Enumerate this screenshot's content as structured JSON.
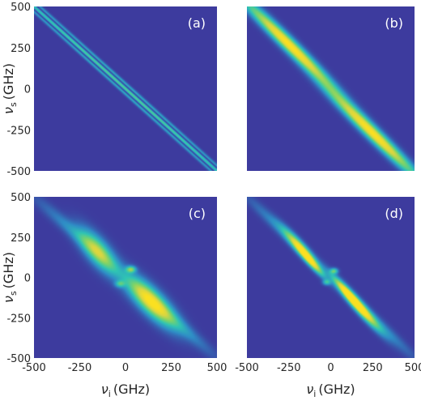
{
  "figure": {
    "x_axis": {
      "symbol": "ν",
      "sub": "i",
      "unit": "(GHz)"
    },
    "y_axis": {
      "symbol": "ν",
      "sub": "s",
      "unit": "(GHz)"
    }
  },
  "colors": {
    "background": "#3d3b9e",
    "colormap": [
      "#3d3b9e",
      "#2f8cc6",
      "#2fc4b4",
      "#7cd36a",
      "#d8d642",
      "#fbe021"
    ]
  },
  "chart_data": [
    {
      "type": "heatmap",
      "panel": "(a)",
      "title": "",
      "xlabel": "",
      "ylabel": "νs (GHz)",
      "xlim": [
        -500,
        500
      ],
      "ylim": [
        -500,
        500
      ],
      "xticks": [],
      "yticks": [
        "500",
        "250",
        "0",
        "-250",
        "-500"
      ],
      "description_values": {
        "shape": "anti-diagonal double band with dark center line",
        "ridges": [
          {
            "x": -500,
            "y": 500
          },
          {
            "x": 500,
            "y": -500
          }
        ]
      },
      "blobs": [
        {
          "cx": 0,
          "cy": 0,
          "sa": 1000,
          "sd": 9,
          "ang": -45,
          "amp": 0.75
        },
        {
          "cx": 0,
          "cy": 0,
          "sa": 1000,
          "sd": 5,
          "ang": -45,
          "amp": -0.75
        }
      ],
      "offsets": [
        -18,
        18
      ]
    },
    {
      "type": "heatmap",
      "panel": "(b)",
      "title": "",
      "xlabel": "",
      "ylabel": "",
      "xlim": [
        -500,
        500
      ],
      "ylim": [
        -500,
        500
      ],
      "xticks": [],
      "yticks": [],
      "blobs": [
        {
          "cx": -250,
          "cy": 270,
          "sa": 260,
          "sd": 26,
          "ang": -45,
          "amp": 1.0
        },
        {
          "cx": 250,
          "cy": -270,
          "sa": 260,
          "sd": 26,
          "ang": -45,
          "amp": 1.0
        }
      ]
    },
    {
      "type": "heatmap",
      "panel": "(c)",
      "title": "",
      "xlabel": "νi (GHz)",
      "ylabel": "νs (GHz)",
      "xlim": [
        -500,
        500
      ],
      "ylim": [
        -500,
        500
      ],
      "xticks": [
        "-500",
        "-250",
        "0",
        "250",
        "500"
      ],
      "yticks": [
        "500",
        "250",
        "0",
        "-250",
        "-500"
      ],
      "blobs": [
        {
          "cx": -150,
          "cy": 160,
          "sa": 110,
          "sd": 40,
          "ang": -55,
          "amp": 0.7
        },
        {
          "cx": 140,
          "cy": -150,
          "sa": 130,
          "sd": 42,
          "ang": -50,
          "amp": 0.95
        },
        {
          "cx": 30,
          "cy": 50,
          "sa": 18,
          "sd": 14,
          "ang": 0,
          "amp": 0.55
        },
        {
          "cx": -30,
          "cy": -40,
          "sa": 18,
          "sd": 14,
          "ang": 0,
          "amp": 0.35
        },
        {
          "cx": -280,
          "cy": 280,
          "sa": 200,
          "sd": 25,
          "ang": -45,
          "amp": 0.2
        },
        {
          "cx": 280,
          "cy": -280,
          "sa": 200,
          "sd": 25,
          "ang": -45,
          "amp": 0.2
        }
      ]
    },
    {
      "type": "heatmap",
      "panel": "(d)",
      "title": "",
      "xlabel": "νi (GHz)",
      "ylabel": "",
      "xlim": [
        -500,
        500
      ],
      "ylim": [
        -500,
        500
      ],
      "xticks": [
        "-500",
        "-250",
        "0",
        "250",
        "500"
      ],
      "yticks": [],
      "blobs": [
        {
          "cx": -170,
          "cy": 170,
          "sa": 110,
          "sd": 20,
          "ang": -50,
          "amp": 0.8
        },
        {
          "cx": -120,
          "cy": 100,
          "sa": 80,
          "sd": 14,
          "ang": -50,
          "amp": 0.5
        },
        {
          "cx": 160,
          "cy": -170,
          "sa": 130,
          "sd": 20,
          "ang": -50,
          "amp": 0.95
        },
        {
          "cx": 110,
          "cy": -110,
          "sa": 90,
          "sd": 14,
          "ang": -50,
          "amp": 0.55
        },
        {
          "cx": 20,
          "cy": 40,
          "sa": 16,
          "sd": 12,
          "ang": 0,
          "amp": 0.5
        },
        {
          "cx": -25,
          "cy": -30,
          "sa": 16,
          "sd": 12,
          "ang": 0,
          "amp": 0.35
        },
        {
          "cx": -290,
          "cy": 290,
          "sa": 200,
          "sd": 22,
          "ang": -45,
          "amp": 0.2
        },
        {
          "cx": 290,
          "cy": -290,
          "sa": 200,
          "sd": 22,
          "ang": -45,
          "amp": 0.2
        }
      ]
    }
  ]
}
